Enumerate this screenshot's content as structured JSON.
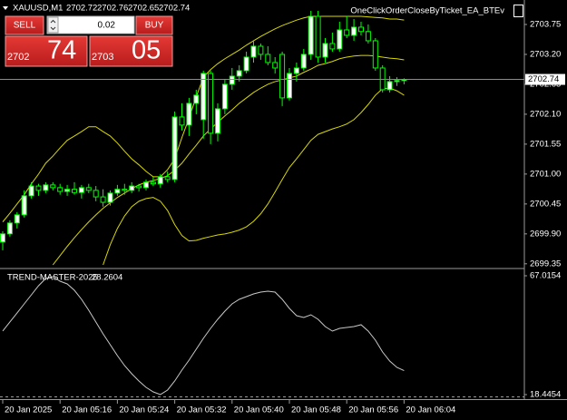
{
  "header": {
    "ea_name": "OneClickOrderCloseByTicket_EA_BTEv"
  },
  "trade_panel": {
    "sell": "SELL",
    "buy": "BUY",
    "lot": 0.02,
    "bid_main": "2702",
    "bid_pips": "74",
    "ask_main": "2703",
    "ask_pips": "05"
  },
  "chart_data": [
    {
      "type": "candlestick",
      "title": "XAUUSD,M1",
      "categories": [
        "20 Jan 2025",
        null,
        null,
        null,
        null,
        null,
        null,
        null,
        "20 Jan 05:16",
        null,
        null,
        null,
        null,
        null,
        null,
        null,
        "20 Jan 05:24",
        null,
        null,
        null,
        null,
        null,
        null,
        null,
        "20 Jan 05:32",
        null,
        null,
        null,
        null,
        null,
        null,
        null,
        "20 Jan 05:40",
        null,
        null,
        null,
        null,
        null,
        null,
        null,
        "20 Jan 05:48",
        null,
        null,
        null,
        null,
        null,
        null,
        null,
        "20 Jan 05:56",
        null,
        null,
        null,
        null,
        null,
        null,
        null,
        "20 Jan 06:04"
      ],
      "open": [
        2699.75,
        2699.9,
        2700.1,
        2700.25,
        2700.6,
        2700.78,
        2700.7,
        2700.8,
        2700.75,
        2700.68,
        2700.72,
        2700.66,
        2700.75,
        2700.7,
        2700.58,
        2700.48,
        2700.65,
        2700.72,
        2700.7,
        2700.78,
        2700.75,
        2700.85,
        2700.82,
        2700.95,
        2700.9,
        2702.05,
        2701.9,
        2702.3,
        2702.0,
        2702.85,
        2701.75,
        2702.2,
        2702.65,
        2702.8,
        2702.9,
        2703.15,
        2703.35,
        2703.2,
        2703.05,
        2703.2,
        2702.4,
        2702.85,
        2702.95,
        2703.2,
        2703.9,
        2703.15,
        2703.4,
        2703.3,
        2703.65,
        2703.55,
        2703.7,
        2703.62,
        2703.45,
        2702.95,
        2702.55,
        2702.7,
        2702.72
      ],
      "high": [
        2699.95,
        2700.15,
        2700.3,
        2700.7,
        2700.85,
        2700.82,
        2700.85,
        2700.85,
        2700.82,
        2700.8,
        2700.85,
        2700.8,
        2700.82,
        2700.78,
        2700.72,
        2700.7,
        2700.8,
        2700.82,
        2700.85,
        2700.82,
        2700.9,
        2700.95,
        2701.0,
        2701.05,
        2702.15,
        2702.3,
        2702.4,
        2702.55,
        2702.9,
        2702.9,
        2702.3,
        2702.75,
        2702.95,
        2703.0,
        2703.25,
        2703.45,
        2703.4,
        2703.35,
        2703.15,
        2703.25,
        2702.95,
        2703.05,
        2703.3,
        2704.0,
        2704.0,
        2703.5,
        2703.6,
        2703.8,
        2703.9,
        2703.85,
        2703.8,
        2703.75,
        2703.5,
        2703.0,
        2702.8,
        2702.78,
        2702.76
      ],
      "low": [
        2699.6,
        2699.85,
        2700.0,
        2700.2,
        2700.55,
        2700.6,
        2700.65,
        2700.7,
        2700.62,
        2700.6,
        2700.62,
        2700.55,
        2700.65,
        2700.5,
        2700.4,
        2700.42,
        2700.6,
        2700.62,
        2700.65,
        2700.68,
        2700.7,
        2700.78,
        2700.75,
        2700.85,
        2700.85,
        2701.8,
        2701.7,
        2702.1,
        2701.65,
        2701.55,
        2701.6,
        2702.1,
        2702.55,
        2702.7,
        2702.85,
        2703.05,
        2703.1,
        2703.0,
        2702.85,
        2702.25,
        2702.35,
        2702.7,
        2702.9,
        2703.1,
        2703.05,
        2703.05,
        2703.25,
        2703.25,
        2703.5,
        2703.45,
        2703.55,
        2703.4,
        2702.9,
        2702.5,
        2702.5,
        2702.62,
        2702.65
      ],
      "close": [
        2699.9,
        2700.1,
        2700.25,
        2700.6,
        2700.78,
        2700.7,
        2700.8,
        2700.75,
        2700.68,
        2700.72,
        2700.66,
        2700.75,
        2700.7,
        2700.58,
        2700.48,
        2700.65,
        2700.72,
        2700.7,
        2700.78,
        2700.75,
        2700.85,
        2700.82,
        2700.95,
        2700.9,
        2702.05,
        2701.9,
        2702.3,
        2702.45,
        2702.85,
        2701.75,
        2702.2,
        2702.65,
        2702.8,
        2702.9,
        2703.15,
        2703.35,
        2703.2,
        2703.05,
        2702.95,
        2702.4,
        2702.85,
        2702.95,
        2703.2,
        2703.9,
        2703.15,
        2703.4,
        2703.3,
        2703.65,
        2703.55,
        2703.7,
        2703.62,
        2703.45,
        2702.95,
        2702.55,
        2702.7,
        2702.72,
        2702.74
      ],
      "up_color": "#ffffff",
      "down_color": "#000000",
      "wick_color": "#00ff00",
      "price_line_color": "#8c8c8c",
      "series": [
        {
          "color": "#d8d800",
          "values": [
            2700.12,
            2700.28,
            2700.45,
            2700.62,
            2700.82,
            2701.0,
            2701.2,
            2701.33,
            2701.48,
            2701.62,
            2701.7,
            2701.78,
            2701.87,
            2701.87,
            2701.78,
            2701.7,
            2701.57,
            2701.42,
            2701.28,
            2701.17,
            2701.05,
            2700.95,
            2700.95,
            2701.08,
            2701.28,
            2701.67,
            2702.03,
            2702.42,
            2702.78,
            2702.92,
            2703.03,
            2703.12,
            2703.2,
            2703.28,
            2703.37,
            2703.45,
            2703.53,
            2703.6,
            2703.67,
            2703.73,
            2703.78,
            2703.83,
            2703.87,
            2703.9,
            2703.9,
            2703.9,
            2703.9,
            2703.9,
            2703.9,
            2703.9,
            2703.9,
            2703.89,
            2703.88,
            2703.87,
            2703.85,
            2703.85,
            2703.83
          ]
        },
        {
          "color": "#d8d800",
          "values": [
            null,
            null,
            null,
            null,
            null,
            null,
            null,
            2699.33,
            2699.5,
            2699.67,
            2699.83,
            2699.98,
            2700.12,
            2700.25,
            2700.37,
            2700.47,
            2700.57,
            2700.65,
            2700.73,
            2700.8,
            2700.85,
            2700.88,
            2700.92,
            2700.97,
            2701.07,
            2701.2,
            2701.37,
            2701.53,
            2701.7,
            2701.83,
            2701.95,
            2702.07,
            2702.18,
            2702.3,
            2702.4,
            2702.5,
            2702.58,
            2702.65,
            2702.7,
            2702.73,
            2702.77,
            2702.8,
            2702.87,
            2702.93,
            2703.0,
            2703.03,
            2703.07,
            2703.12,
            2703.15,
            2703.17,
            2703.18,
            2703.18,
            2703.17,
            2703.15,
            2703.13,
            2703.12,
            2703.1
          ]
        },
        {
          "color": "#d8d800",
          "values": [
            null,
            null,
            null,
            null,
            null,
            null,
            null,
            null,
            null,
            null,
            null,
            null,
            null,
            null,
            2699.33,
            2699.7,
            2700.0,
            2700.23,
            2700.4,
            2700.5,
            2700.55,
            2700.57,
            2700.5,
            2700.33,
            2700.07,
            2699.87,
            2699.77,
            2699.78,
            2699.82,
            2699.85,
            2699.88,
            2699.9,
            2699.93,
            2699.97,
            2700.03,
            2700.13,
            2700.27,
            2700.45,
            2700.67,
            2700.9,
            2701.12,
            2701.28,
            2701.45,
            2701.62,
            2701.73,
            2701.78,
            2701.83,
            2701.87,
            2701.92,
            2702.0,
            2702.13,
            2702.28,
            2702.45,
            2702.57,
            2702.58,
            2702.53,
            2702.45
          ]
        }
      ],
      "ylim": [
        2699.28,
        2704.2
      ],
      "yticks": [
        2703.75,
        {
          "value": 2703.2,
          "label": "2703.20"
        },
        2702.65,
        {
          "value": 2702.1,
          "label": "2702.10"
        },
        2701.55,
        {
          "value": 2701.0,
          "label": "2701.00"
        },
        2700.45,
        {
          "value": 2699.9,
          "label": "2699.90"
        },
        2699.35
      ]
    },
    {
      "type": "line",
      "title": "TREND-MASTER-2025",
      "color": "#c8c8c8",
      "values": [
        44.4,
        48.11,
        51.81,
        55.52,
        59.23,
        62.94,
        65.9,
        66.64,
        64.79,
        63.68,
        61.08,
        57.38,
        52.92,
        48.11,
        43.29,
        38.84,
        34.39,
        30.31,
        26.97,
        24.01,
        21.41,
        19.56,
        18.45,
        20.3,
        24.01,
        28.45,
        32.53,
        36.98,
        41.43,
        45.51,
        49.22,
        52.55,
        55.52,
        57.38,
        58.49,
        59.6,
        60.34,
        60.71,
        60.34,
        57.38,
        53.67,
        50.7,
        49.96,
        51.07,
        49.22,
        46.25,
        44.4,
        45.51,
        45.88,
        46.25,
        47.0,
        44.4,
        40.69,
        35.87,
        32.16,
        29.57,
        28.2604
      ],
      "ylim": [
        16.59,
        69.61
      ],
      "yticks": [
        67.0154,
        18.4454
      ]
    }
  ]
}
